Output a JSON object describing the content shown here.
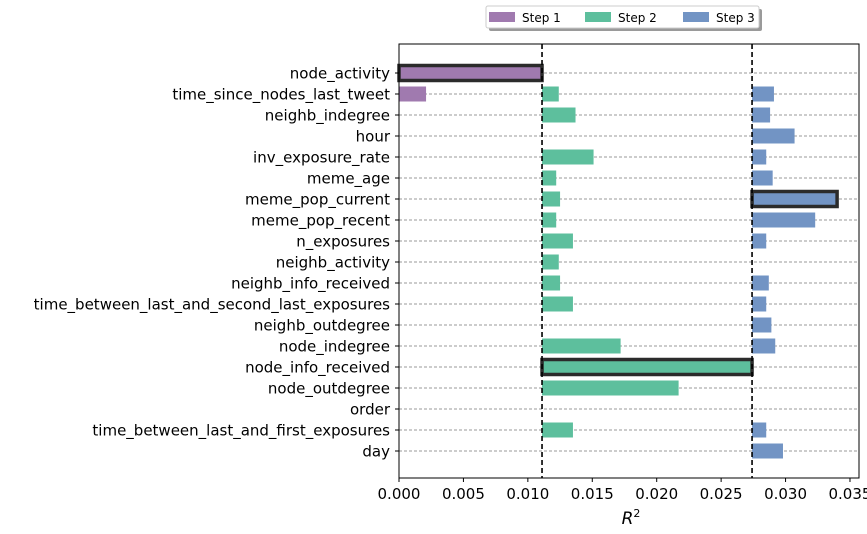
{
  "chart_data": {
    "type": "bar",
    "orientation": "horizontal",
    "xlabel": "R",
    "xlabel_superscript": "2",
    "xlim": [
      0,
      0.0357
    ],
    "xticks": [
      "0.000",
      "0.005",
      "0.010",
      "0.015",
      "0.020",
      "0.025",
      "0.030",
      "0.035"
    ],
    "xtick_values": [
      0,
      0.005,
      0.01,
      0.015,
      0.02,
      0.025,
      0.03,
      0.035
    ],
    "categories": [
      "node_activity",
      "time_since_nodes_last_tweet",
      "neighb_indegree",
      "hour",
      "inv_exposure_rate",
      "meme_age",
      "meme_pop_current",
      "meme_pop_recent",
      "n_exposures",
      "neighb_activity",
      "neighb_info_received",
      "time_between_last_and_second_last_exposures",
      "neighb_outdegree",
      "node_indegree",
      "node_info_received",
      "node_outdegree",
      "order",
      "time_between_last_and_first_exposures",
      "day"
    ],
    "thresholds": [
      0.0111,
      0.0274
    ],
    "series": [
      {
        "name": "Step 1",
        "color": "#a07aaf",
        "base": 0,
        "values": [
          0.0111,
          0.0021,
          null,
          null,
          null,
          null,
          null,
          null,
          null,
          null,
          null,
          null,
          null,
          null,
          null,
          null,
          null,
          null,
          null
        ],
        "selected": "node_activity"
      },
      {
        "name": "Step 2",
        "color": "#5dbf9d",
        "base": 0.0111,
        "values": [
          null,
          0.0124,
          0.0137,
          null,
          0.0151,
          0.0122,
          0.0125,
          0.0122,
          0.0135,
          0.0124,
          0.0125,
          0.0135,
          null,
          0.0172,
          0.0274,
          0.0217,
          null,
          0.0135,
          null
        ],
        "selected": "node_info_received"
      },
      {
        "name": "Step 3",
        "color": "#7294c4",
        "base": 0.0274,
        "values": [
          null,
          0.0291,
          0.0288,
          0.0307,
          0.0285,
          0.029,
          0.034,
          0.0323,
          0.0285,
          null,
          0.0287,
          0.0285,
          0.0289,
          0.0292,
          null,
          null,
          null,
          0.0285,
          0.0298
        ],
        "selected": "meme_pop_current"
      }
    ],
    "legend": {
      "placement": "top",
      "entries": [
        "Step 1",
        "Step 2",
        "Step 3"
      ]
    }
  }
}
